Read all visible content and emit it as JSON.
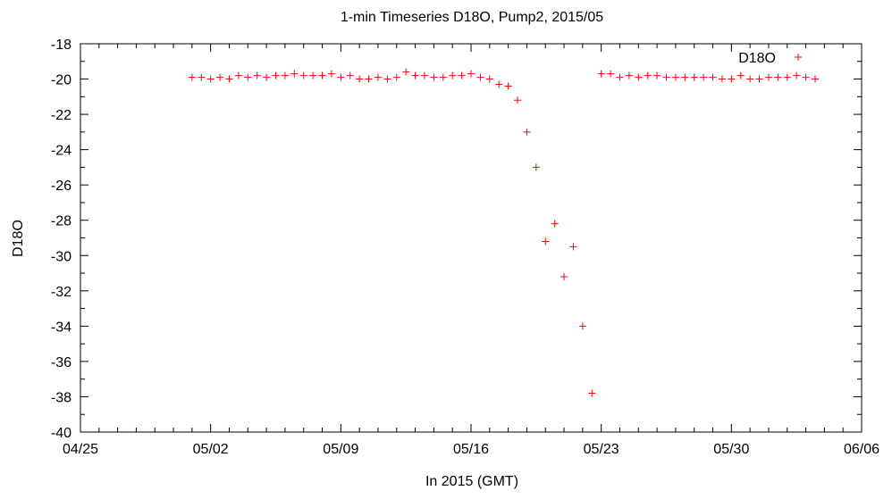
{
  "chart_data": {
    "type": "scatter",
    "title": "1-min Timeseries D18O, Pump2, 2015/05",
    "xlabel": "In 2015 (GMT)",
    "ylabel": "D18O",
    "x_range": [
      "2015-04-25",
      "2015-06-06"
    ],
    "ylim": [
      -40,
      -18
    ],
    "x_ticks": [
      "04/25",
      "05/02",
      "05/09",
      "05/16",
      "05/23",
      "05/30",
      "06/06"
    ],
    "y_ticks": [
      -18,
      -20,
      -22,
      -24,
      -26,
      -28,
      -30,
      -32,
      -34,
      -36,
      -38,
      -40
    ],
    "grid": false,
    "legend_position": "top-right",
    "marker": "plus",
    "color": "#ff0000",
    "series": [
      {
        "name": "D18O",
        "points": [
          [
            "2015-05-01",
            -19.9
          ],
          [
            "2015-05-01 12:00",
            -19.9
          ],
          [
            "2015-05-02",
            -20.0
          ],
          [
            "2015-05-02 12:00",
            -19.9
          ],
          [
            "2015-05-03",
            -20.0
          ],
          [
            "2015-05-03 12:00",
            -19.8
          ],
          [
            "2015-05-04",
            -19.9
          ],
          [
            "2015-05-04 12:00",
            -19.8
          ],
          [
            "2015-05-05",
            -19.9
          ],
          [
            "2015-05-05 12:00",
            -19.8
          ],
          [
            "2015-05-06",
            -19.8
          ],
          [
            "2015-05-06 12:00",
            -19.7
          ],
          [
            "2015-05-07",
            -19.8
          ],
          [
            "2015-05-07 12:00",
            -19.8
          ],
          [
            "2015-05-08",
            -19.8
          ],
          [
            "2015-05-08 12:00",
            -19.7
          ],
          [
            "2015-05-09",
            -19.9
          ],
          [
            "2015-05-09 12:00",
            -19.8
          ],
          [
            "2015-05-10",
            -20.0
          ],
          [
            "2015-05-10 12:00",
            -20.0
          ],
          [
            "2015-05-11",
            -19.9
          ],
          [
            "2015-05-11 12:00",
            -20.0
          ],
          [
            "2015-05-12",
            -19.9
          ],
          [
            "2015-05-12 12:00",
            -19.6
          ],
          [
            "2015-05-13",
            -19.8
          ],
          [
            "2015-05-13 12:00",
            -19.8
          ],
          [
            "2015-05-14",
            -19.9
          ],
          [
            "2015-05-14 12:00",
            -19.9
          ],
          [
            "2015-05-15",
            -19.8
          ],
          [
            "2015-05-15 12:00",
            -19.8
          ],
          [
            "2015-05-16",
            -19.7
          ],
          [
            "2015-05-16 12:00",
            -19.9
          ],
          [
            "2015-05-17",
            -20.0
          ],
          [
            "2015-05-17 12:00",
            -20.3
          ],
          [
            "2015-05-18",
            -20.4
          ],
          [
            "2015-05-18 12:00",
            -21.2
          ],
          [
            "2015-05-19",
            -23.0
          ],
          [
            "2015-05-19 12:00",
            -25.0
          ],
          [
            "2015-05-20",
            -29.2
          ],
          [
            "2015-05-20 12:00",
            -28.2
          ],
          [
            "2015-05-21",
            -31.2
          ],
          [
            "2015-05-21 12:00",
            -29.5
          ],
          [
            "2015-05-22",
            -34.0
          ],
          [
            "2015-05-22 12:00",
            -37.8
          ],
          [
            "2015-05-23",
            -19.7
          ],
          [
            "2015-05-23 12:00",
            -19.7
          ],
          [
            "2015-05-24",
            -19.9
          ],
          [
            "2015-05-24 12:00",
            -19.8
          ],
          [
            "2015-05-25",
            -19.9
          ],
          [
            "2015-05-25 12:00",
            -19.8
          ],
          [
            "2015-05-26",
            -19.8
          ],
          [
            "2015-05-26 12:00",
            -19.9
          ],
          [
            "2015-05-27",
            -19.9
          ],
          [
            "2015-05-27 12:00",
            -19.9
          ],
          [
            "2015-05-28",
            -19.9
          ],
          [
            "2015-05-28 12:00",
            -19.9
          ],
          [
            "2015-05-29",
            -19.9
          ],
          [
            "2015-05-29 12:00",
            -20.0
          ],
          [
            "2015-05-30",
            -20.0
          ],
          [
            "2015-05-30 12:00",
            -19.8
          ],
          [
            "2015-05-31",
            -20.0
          ],
          [
            "2015-05-31 12:00",
            -20.0
          ],
          [
            "2015-06-01",
            -19.9
          ],
          [
            "2015-06-01 12:00",
            -19.9
          ],
          [
            "2015-06-02",
            -19.9
          ],
          [
            "2015-06-02 12:00",
            -19.8
          ],
          [
            "2015-06-03",
            -19.9
          ],
          [
            "2015-06-03 12:00",
            -20.0
          ]
        ]
      }
    ]
  }
}
